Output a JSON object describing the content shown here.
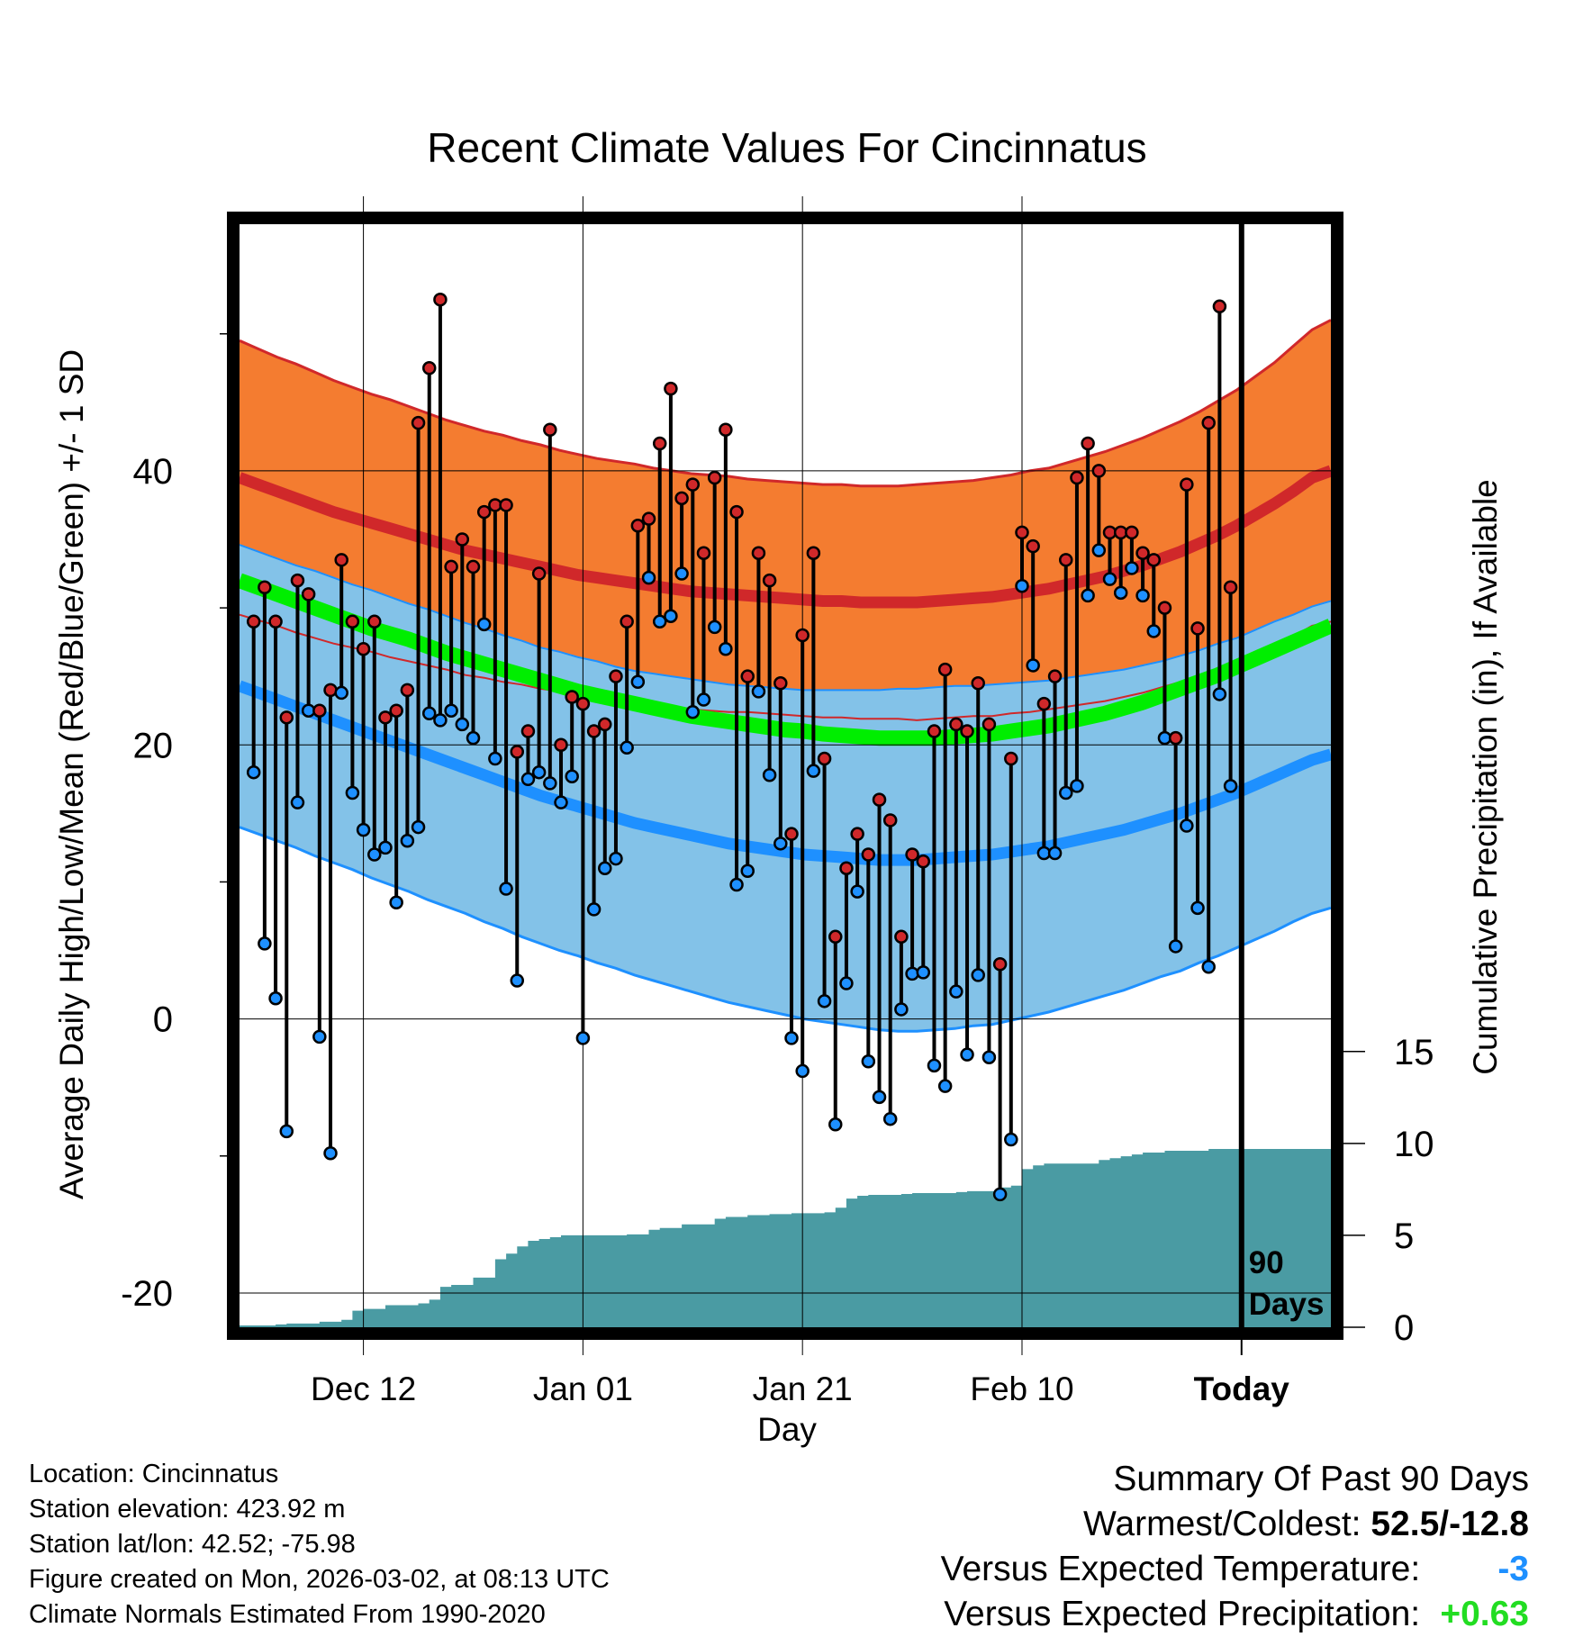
{
  "chart_data": {
    "type": "line",
    "title": "Recent Climate Values For Cincinnatus",
    "xlabel": "Day",
    "ylabel_left": "Average Daily High/Low/Mean (Red/Blue/Green) +/- 1 SD",
    "ylabel_right": "Cumulative Precipitation (in), If Available",
    "x_tick_labels": [
      "Dec 12",
      "Jan 01",
      "Jan 21",
      "Feb 10",
      "Today"
    ],
    "x_tick_days": [
      11,
      31,
      51,
      71,
      91
    ],
    "y_left_ticks": [
      -20,
      0,
      20,
      40
    ],
    "y_left_range": [
      -22.5,
      58
    ],
    "y_right_ticks": [
      0,
      5,
      10,
      15
    ],
    "y_right_range": [
      0,
      60
    ],
    "today_label": "90 Days",
    "normal_high_mean": [
      39.5,
      39.0,
      38.5,
      38.0,
      37.5,
      37.0,
      36.6,
      36.2,
      35.8,
      35.4,
      35.0,
      34.6,
      34.2,
      33.9,
      33.6,
      33.3,
      33.0,
      32.7,
      32.4,
      32.2,
      32.0,
      31.8,
      31.6,
      31.4,
      31.2,
      31.1,
      31.0,
      30.9,
      30.8,
      30.7,
      30.6,
      30.5,
      30.5,
      30.4,
      30.4,
      30.4,
      30.4,
      30.5,
      30.6,
      30.7,
      30.8,
      31.0,
      31.2,
      31.4,
      31.7,
      32.0,
      32.3,
      32.7,
      33.1,
      33.6,
      34.1,
      34.7,
      35.3,
      36.0,
      36.8,
      37.6,
      38.5,
      39.5,
      40.0
    ],
    "normal_high_sd": [
      10.0,
      9.9,
      9.8,
      9.8,
      9.7,
      9.6,
      9.5,
      9.4,
      9.4,
      9.3,
      9.2,
      9.1,
      9.1,
      9.0,
      9.0,
      8.9,
      8.9,
      8.8,
      8.8,
      8.7,
      8.7,
      8.7,
      8.6,
      8.6,
      8.6,
      8.6,
      8.6,
      8.5,
      8.5,
      8.5,
      8.5,
      8.5,
      8.5,
      8.5,
      8.5,
      8.5,
      8.6,
      8.6,
      8.6,
      8.6,
      8.7,
      8.7,
      8.8,
      8.8,
      8.9,
      9.0,
      9.1,
      9.2,
      9.3,
      9.4,
      9.5,
      9.6,
      9.8,
      9.9,
      10.1,
      10.3,
      10.6,
      10.8,
      11.0
    ],
    "normal_low_mean": [
      24.3,
      23.8,
      23.3,
      22.8,
      22.3,
      21.8,
      21.3,
      20.8,
      20.3,
      19.8,
      19.3,
      18.8,
      18.3,
      17.8,
      17.3,
      16.8,
      16.3,
      15.9,
      15.5,
      15.1,
      14.7,
      14.3,
      14.0,
      13.7,
      13.4,
      13.1,
      12.8,
      12.6,
      12.4,
      12.2,
      12.0,
      11.9,
      11.8,
      11.7,
      11.6,
      11.6,
      11.6,
      11.7,
      11.8,
      11.9,
      12.0,
      12.2,
      12.4,
      12.6,
      12.9,
      13.2,
      13.5,
      13.8,
      14.2,
      14.6,
      15.0,
      15.5,
      16.0,
      16.5,
      17.1,
      17.7,
      18.3,
      18.9,
      19.3
    ],
    "normal_low_sd": [
      10.3,
      10.3,
      10.3,
      10.3,
      10.4,
      10.4,
      10.4,
      10.5,
      10.5,
      10.5,
      10.6,
      10.6,
      10.6,
      10.7,
      10.7,
      10.8,
      10.8,
      10.9,
      10.9,
      11.0,
      11.0,
      11.1,
      11.2,
      11.3,
      11.4,
      11.5,
      11.6,
      11.7,
      11.8,
      11.9,
      12.0,
      12.1,
      12.2,
      12.3,
      12.4,
      12.5,
      12.5,
      12.5,
      12.5,
      12.4,
      12.4,
      12.3,
      12.2,
      12.1,
      12.0,
      11.9,
      11.8,
      11.7,
      11.6,
      11.5,
      11.5,
      11.4,
      11.4,
      11.3,
      11.3,
      11.3,
      11.2,
      11.2,
      11.2
    ],
    "normal_mean": [
      32.0,
      31.5,
      31.0,
      30.5,
      30.0,
      29.5,
      29.0,
      28.5,
      28.1,
      27.7,
      27.2,
      26.7,
      26.3,
      25.9,
      25.5,
      25.1,
      24.7,
      24.3,
      23.9,
      23.6,
      23.3,
      23.0,
      22.7,
      22.4,
      22.1,
      21.9,
      21.7,
      21.5,
      21.3,
      21.1,
      21.0,
      20.8,
      20.7,
      20.6,
      20.5,
      20.5,
      20.5,
      20.5,
      20.6,
      20.7,
      20.8,
      21.0,
      21.2,
      21.4,
      21.7,
      22.0,
      22.3,
      22.7,
      23.1,
      23.6,
      24.1,
      24.6,
      25.1,
      25.7,
      26.3,
      26.9,
      27.5,
      28.1,
      28.7
    ],
    "daily_days": [
      1,
      2,
      3,
      4,
      5,
      6,
      7,
      8,
      9,
      10,
      11,
      12,
      13,
      14,
      15,
      16,
      17,
      18,
      19,
      20,
      21,
      22,
      23,
      24,
      25,
      26,
      27,
      28,
      29,
      30,
      31,
      32,
      33,
      34,
      35,
      36,
      37,
      38,
      39,
      40,
      41,
      42,
      43,
      44,
      45,
      46,
      47,
      48,
      49,
      50,
      51,
      52,
      53,
      54,
      55,
      56,
      57,
      58,
      59,
      60,
      61,
      62,
      63,
      64,
      65,
      66,
      67,
      68,
      69,
      70,
      71,
      72,
      73,
      74,
      75,
      76,
      77,
      78,
      79,
      80,
      81,
      82,
      83,
      84,
      85,
      86,
      87,
      88,
      89
    ],
    "daily_high": [
      29,
      31.5,
      29,
      22,
      32,
      31,
      22.5,
      24,
      33.5,
      29,
      27,
      29,
      22,
      22.5,
      24,
      43.5,
      47.5,
      52.5,
      33,
      35,
      33,
      37,
      37.5,
      37.5,
      19.5,
      21,
      32.5,
      43,
      20,
      23.5,
      23,
      21,
      21.5,
      25,
      29,
      36,
      36.5,
      42,
      46,
      38,
      39,
      34,
      39.5,
      43,
      37,
      25,
      34,
      32,
      24.5,
      13.5,
      28,
      34,
      19,
      6,
      11,
      13.5,
      12,
      16,
      14.5,
      6,
      12,
      11.5,
      21,
      25.5,
      21.5,
      21,
      24.5,
      21.5,
      4,
      19,
      35.5,
      34.5,
      23,
      25,
      33.5,
      39.5,
      42,
      40,
      35.5,
      35.5,
      35.5,
      34,
      33.5,
      30,
      20.5,
      39,
      28.5,
      43.5,
      52
    ],
    "daily_low": [
      18,
      5.5,
      1.5,
      -8.2,
      15.8,
      22.5,
      -1.3,
      -9.8,
      23.8,
      16.5,
      13.8,
      12,
      12.5,
      8.5,
      13,
      14,
      22.3,
      21.8,
      22.5,
      21.5,
      20.5,
      28.8,
      19,
      9.5,
      2.8,
      17.5,
      18,
      17.2,
      15.8,
      17.7,
      -1.4,
      8,
      11,
      11.7,
      19.8,
      24.6,
      32.2,
      29,
      29.4,
      32.5,
      22.4,
      23.3,
      28.6,
      27,
      9.8,
      10.8,
      23.9,
      17.8,
      12.8,
      -1.4,
      -3.8,
      18.1,
      1.3,
      -7.7,
      2.6,
      9.3,
      -3.1,
      -5.7,
      -7.3,
      0.7,
      3.3,
      3.4,
      -3.4,
      -4.9,
      2,
      -2.6,
      3.2,
      -2.8,
      -12.8,
      -8.8,
      31.6,
      25.8,
      12.1,
      12.1,
      16.5,
      17,
      30.9,
      34.2,
      32.1,
      31.1,
      32.9,
      30.9,
      28.3,
      20.5,
      5.3,
      14.1,
      8.1,
      3.8,
      23.7
    ],
    "daily_days_extra": [
      90
    ],
    "daily_high_extra": [
      31.5
    ],
    "daily_low_extra": [
      17
    ],
    "precip_days": [
      0,
      3,
      4,
      5,
      7,
      8,
      9,
      10,
      11,
      13,
      14,
      16,
      17,
      18,
      19,
      20,
      21,
      22,
      23,
      24,
      25,
      26,
      27,
      28,
      29,
      30,
      31,
      35,
      36,
      37,
      38,
      39,
      40,
      41,
      42,
      43,
      44,
      46,
      47,
      48,
      50,
      51,
      53,
      54,
      55,
      56,
      57,
      60,
      61,
      62,
      64,
      65,
      66,
      69,
      70,
      71,
      72,
      73,
      74,
      76,
      78,
      79,
      80,
      81,
      82,
      83,
      84,
      85,
      86,
      88,
      89,
      90,
      99
    ],
    "precip_values": [
      0.1,
      0.15,
      0.2,
      0.2,
      0.3,
      0.3,
      0.4,
      0.9,
      1.0,
      1.2,
      1.2,
      1.3,
      1.5,
      2.2,
      2.3,
      2.3,
      2.7,
      2.7,
      3.7,
      4.0,
      4.4,
      4.7,
      4.8,
      4.9,
      5.0,
      5.0,
      5.0,
      5.05,
      5.05,
      5.3,
      5.4,
      5.4,
      5.6,
      5.6,
      5.6,
      5.9,
      6.0,
      6.1,
      6.1,
      6.15,
      6.2,
      6.2,
      6.25,
      6.5,
      7.0,
      7.15,
      7.2,
      7.25,
      7.3,
      7.3,
      7.3,
      7.35,
      7.4,
      7.6,
      7.7,
      8.6,
      8.8,
      8.9,
      8.9,
      8.9,
      9.1,
      9.2,
      9.3,
      9.4,
      9.5,
      9.5,
      9.6,
      9.6,
      9.6,
      9.7,
      9.7,
      9.7,
      9.7
    ]
  },
  "footer": {
    "location": "Location: Cincinnatus",
    "elevation": "Station elevation: 423.92 m",
    "latlon": "Station lat/lon: 42.52; -75.98",
    "created": "Figure created on Mon, 2026-03-02, at 08:13 UTC",
    "normals": "Climate Normals Estimated From 1990-2020"
  },
  "summary": {
    "title": "Summary Of Past 90 Days",
    "warmest_label": "Warmest/Coldest:",
    "warmest_value": "52.5/-12.8",
    "temp_label": "Versus Expected Temperature:",
    "temp_value": "-3",
    "precip_label": "Versus Expected Precipitation:",
    "precip_value": "+0.63"
  },
  "colors": {
    "high_band": "#f47c30",
    "high_line": "#d0282a",
    "low_band": "#83c2e8",
    "low_line": "#1e90ff",
    "overlap": "#941117",
    "mean_line": "#00ee00",
    "precip_fill": "#4a9ba3",
    "high_dot": "#d0282a",
    "low_dot": "#1e90ff"
  }
}
